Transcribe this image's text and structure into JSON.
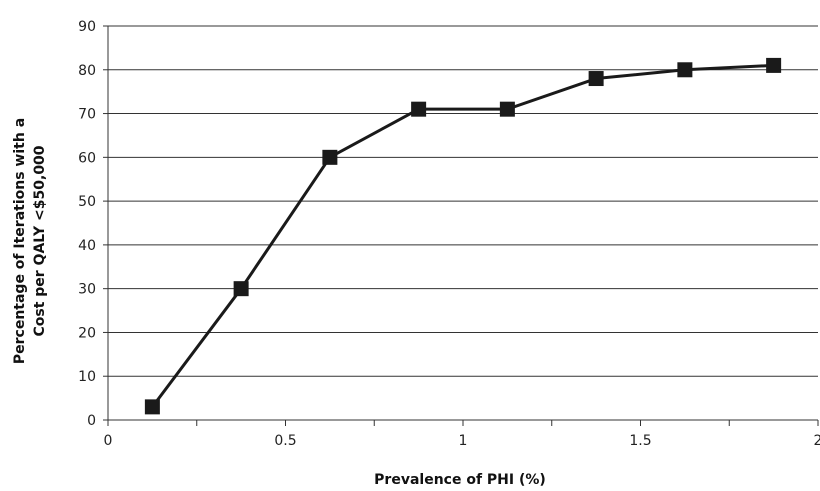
{
  "chart_data": {
    "type": "line",
    "xlabel": "Prevalence of PHI (%)",
    "ylabel_lines": [
      "Percentage of Iterations with a",
      "Cost per QALY  <$50,000"
    ],
    "xlim": [
      0,
      2
    ],
    "ylim": [
      0,
      90
    ],
    "x_ticks": [
      0,
      0.5,
      1,
      1.5,
      2
    ],
    "x_tick_labels": [
      "0",
      "0.5",
      "1",
      "1.5",
      "2"
    ],
    "x_minor_ticks": [
      0.25,
      0.75,
      1.25,
      1.75
    ],
    "y_ticks": [
      0,
      10,
      20,
      30,
      40,
      50,
      60,
      70,
      80,
      90
    ],
    "y_tick_labels": [
      "0",
      "10",
      "20",
      "30",
      "40",
      "50",
      "60",
      "70",
      "80",
      "90"
    ],
    "grid": "horizontal",
    "marker": "square",
    "series": [
      {
        "x": [
          0.125,
          0.375,
          0.625,
          0.875,
          1.125,
          1.375,
          1.625,
          1.875
        ],
        "values": [
          3,
          30,
          60,
          71,
          71,
          78,
          80,
          81
        ]
      }
    ],
    "colors": {
      "line": "#1a1a1a",
      "marker": "#1a1a1a",
      "grid": "#333333",
      "axis": "#333333"
    }
  }
}
